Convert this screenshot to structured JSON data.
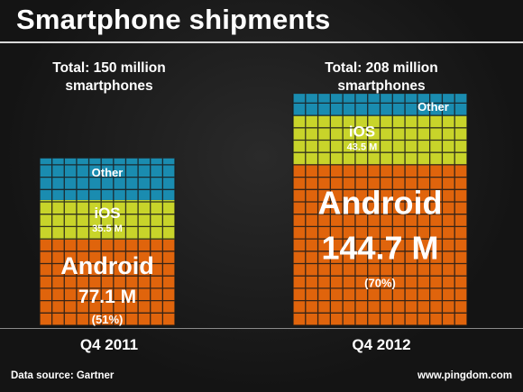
{
  "header": {
    "title": "Smartphone shipments"
  },
  "footer": {
    "source": "Data source: Gartner",
    "site": "www.pingdom.com"
  },
  "colors": {
    "android": "#e0640c",
    "ios": "#c8d42a",
    "other": "#1a8cb0",
    "grid": "#1a1a1a"
  },
  "chart_data": {
    "type": "bar",
    "title": "Smartphone shipments",
    "categories": [
      "Q4 2011",
      "Q4 2012"
    ],
    "stacked": true,
    "totals": [
      {
        "label": "Total: 150 million",
        "label2": "smartphones",
        "value": 150
      },
      {
        "label": "Total: 208 million",
        "label2": "smartphones",
        "value": 208
      }
    ],
    "series": [
      {
        "name": "Android",
        "values": [
          77.1,
          144.7
        ],
        "value_labels": [
          "77.1 M",
          "144.7 M"
        ],
        "pct_labels": [
          "(51%)",
          "(70%)"
        ]
      },
      {
        "name": "iOS",
        "values": [
          35.5,
          43.5
        ],
        "value_labels": [
          "35.5 M",
          "43.5 M"
        ]
      },
      {
        "name": "Other",
        "values": [
          37.4,
          19.8
        ]
      }
    ]
  }
}
